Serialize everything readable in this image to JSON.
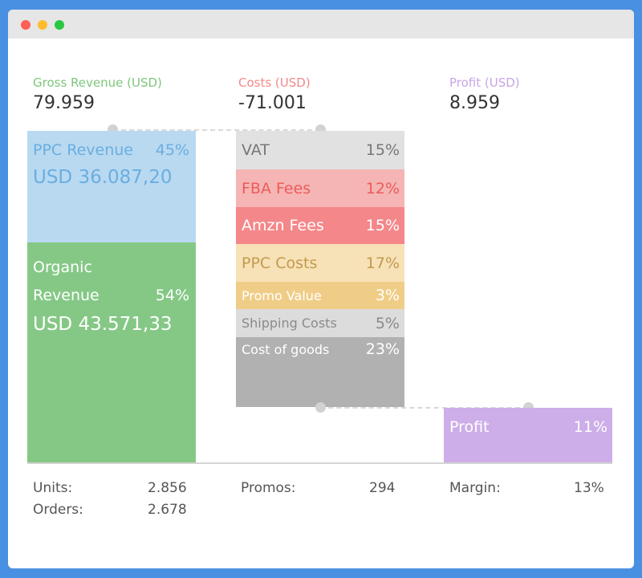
{
  "window": {
    "traffic_lights": [
      "close",
      "minimize",
      "maximize"
    ]
  },
  "header": {
    "gross": {
      "label": "Gross Revenue (USD)",
      "value": "79.959",
      "color": "#7cc77a"
    },
    "costs": {
      "label": "Costs (USD)",
      "value": "-71.001",
      "color": "#f08a88"
    },
    "profit": {
      "label": "Profit (USD)",
      "value": "8.959",
      "color": "#c7a6e6"
    }
  },
  "revenue": {
    "ppc": {
      "label": "PPC Revenue",
      "pct": "45%",
      "amount": "USD 36.087,20",
      "color": "#b9d9f1"
    },
    "organic": {
      "label_line1": "Organic",
      "label_line2": "Revenue",
      "pct": "54%",
      "amount": "USD 43.571,33",
      "color": "#85c886"
    }
  },
  "costs": [
    {
      "label": "VAT",
      "pct": "15%",
      "bg": "#e1e1e1",
      "fg": "#777777"
    },
    {
      "label": "FBA Fees",
      "pct": "12%",
      "bg": "#f5b5b4",
      "fg": "#ea5c5b"
    },
    {
      "label": "Amzn Fees",
      "pct": "15%",
      "bg": "#f4878a",
      "fg": "#ffffff"
    },
    {
      "label": "PPC Costs",
      "pct": "17%",
      "bg": "#f7e1b7",
      "fg": "#c39a4e"
    },
    {
      "label": "Promo Value",
      "pct": "3%",
      "bg": "#f0cd87",
      "fg": "#ffffff"
    },
    {
      "label": "Shipping Costs",
      "pct": "5%",
      "bg": "#dcdcdc",
      "fg": "#8a8a8a"
    },
    {
      "label": "Cost of goods",
      "pct": "23%",
      "bg": "#b1b1b1",
      "fg": "#ffffff"
    }
  ],
  "profit_block": {
    "label": "Profit",
    "pct": "11%",
    "color": "#cdaee8"
  },
  "stats": {
    "units": {
      "label": "Units:",
      "value": "2.856"
    },
    "orders": {
      "label": "Orders:",
      "value": "2.678"
    },
    "promos": {
      "label": "Promos:",
      "value": "294"
    },
    "margin": {
      "label": "Margin:",
      "value": "13%"
    }
  }
}
